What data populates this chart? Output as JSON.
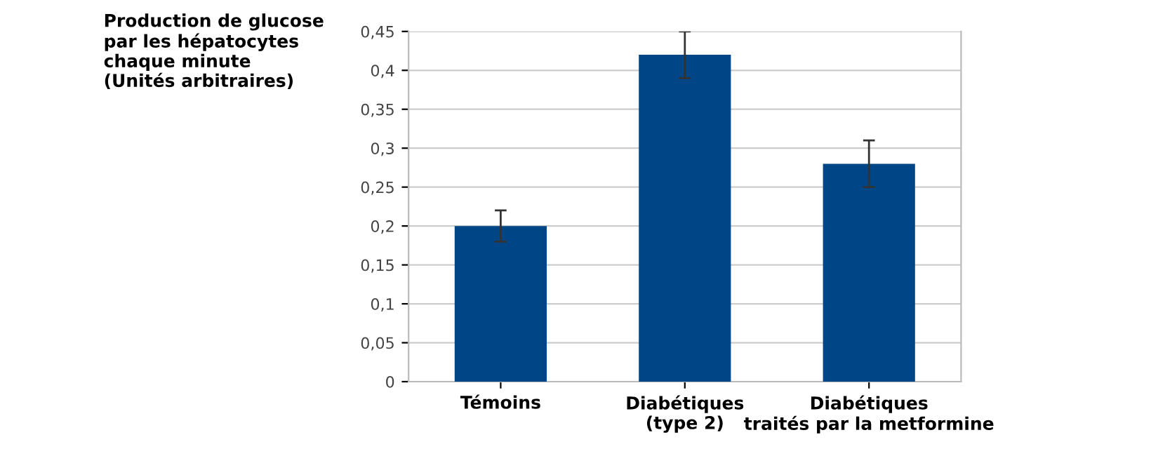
{
  "chart_data": {
    "type": "bar",
    "ylabel": "Production de glucose\npar les hépatocytes\nchaque minute\n(Unités arbitraires)",
    "categories": [
      "Témoins",
      "Diabétiques\n(type 2)",
      "Diabétiques\ntraités par la metformine"
    ],
    "values": [
      0.2,
      0.42,
      0.28
    ],
    "errors": [
      0.02,
      0.03,
      0.03
    ],
    "color": "#004586",
    "ylim": [
      0,
      0.45
    ],
    "yticks": [
      0,
      {
        "value": 0.05,
        "label": "0,05"
      },
      {
        "value": 0.1,
        "label": "0,1"
      },
      {
        "value": 0.15,
        "label": "0,15"
      },
      {
        "value": 0.2,
        "label": "0,2"
      },
      {
        "value": 0.25,
        "label": "0,25"
      },
      {
        "value": 0.3,
        "label": "0,3"
      },
      {
        "value": 0.35,
        "label": "0,35"
      },
      {
        "value": 0.4,
        "label": "0,4"
      },
      {
        "value": 0.45,
        "label": "0,45"
      }
    ],
    "grid": "y"
  }
}
